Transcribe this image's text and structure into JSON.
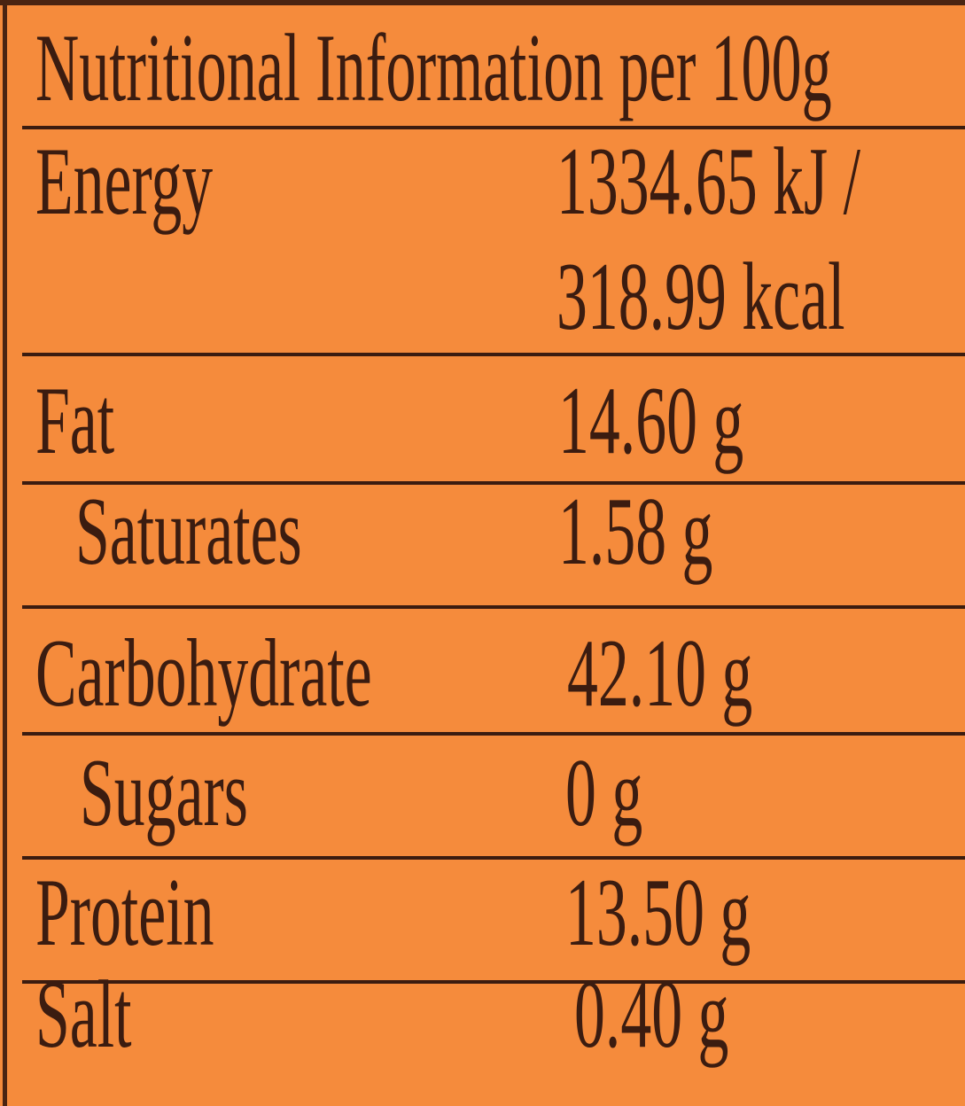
{
  "label": {
    "title": "Nutritional Information per 100g",
    "colors": {
      "background": "#f58b3c",
      "text": "#3b1c10"
    },
    "rows": [
      {
        "name": "Energy",
        "value": "1334.65 kJ /",
        "value2": "318.99 kcal"
      },
      {
        "name": "Fat",
        "value": "14.60 g"
      },
      {
        "name": "Saturates",
        "value": "1.58 g"
      },
      {
        "name": "Carbohydrate",
        "value": "42.10 g"
      },
      {
        "name": "Sugars",
        "value": "0 g"
      },
      {
        "name": "Protein",
        "value": "13.50 g"
      },
      {
        "name": "Salt",
        "value": "0.40 g"
      }
    ]
  }
}
